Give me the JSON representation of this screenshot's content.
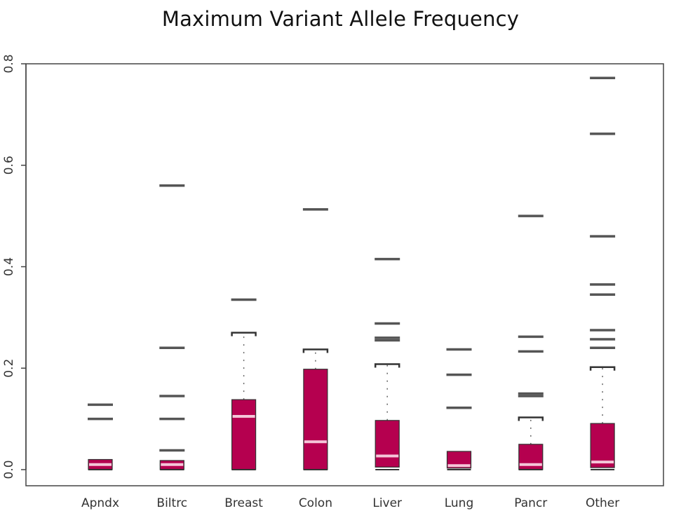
{
  "chart_data": {
    "type": "boxplot",
    "title": "Maximum Variant Allele Frequency",
    "xlabel": "",
    "ylabel": "",
    "ylim": [
      0,
      0.8
    ],
    "yticks": [
      "0.0",
      "0.2",
      "0.4",
      "0.6",
      "0.8"
    ],
    "grid": false,
    "box_color": "#b5004f",
    "median_color": "#f4c6d8",
    "outlier_color": "#555555",
    "categories": [
      "Apndx",
      "Biltrc",
      "Breast",
      "Colon",
      "Liver",
      "Lung",
      "Pancr",
      "Other"
    ],
    "boxes": [
      {
        "category": "Apndx",
        "min": 0.0,
        "q1": 0.0,
        "median": 0.01,
        "q3": 0.02,
        "max": 0.02,
        "outliers": [
          0.1,
          0.128
        ]
      },
      {
        "category": "Biltrc",
        "min": 0.0,
        "q1": 0.0,
        "median": 0.01,
        "q3": 0.018,
        "max": 0.018,
        "outliers": [
          0.038,
          0.1,
          0.145,
          0.24,
          0.56
        ]
      },
      {
        "category": "Breast",
        "min": 0.0,
        "q1": 0.0,
        "median": 0.105,
        "q3": 0.138,
        "max": 0.27,
        "outliers": [
          0.335
        ]
      },
      {
        "category": "Colon",
        "min": 0.0,
        "q1": 0.0,
        "median": 0.055,
        "q3": 0.198,
        "max": 0.237,
        "outliers": [
          0.513
        ]
      },
      {
        "category": "Liver",
        "min": 0.0,
        "q1": 0.005,
        "median": 0.027,
        "q3": 0.097,
        "max": 0.208,
        "outliers": [
          0.255,
          0.26,
          0.288,
          0.415
        ]
      },
      {
        "category": "Lung",
        "min": 0.0,
        "q1": 0.003,
        "median": 0.008,
        "q3": 0.036,
        "max": 0.036,
        "outliers": [
          0.122,
          0.187,
          0.237
        ]
      },
      {
        "category": "Pancr",
        "min": 0.0,
        "q1": 0.0,
        "median": 0.01,
        "q3": 0.05,
        "max": 0.103,
        "outliers": [
          0.145,
          0.15,
          0.233,
          0.262,
          0.5
        ]
      },
      {
        "category": "Other",
        "min": 0.0,
        "q1": 0.004,
        "median": 0.015,
        "q3": 0.091,
        "max": 0.202,
        "outliers": [
          0.24,
          0.257,
          0.275,
          0.345,
          0.365,
          0.46,
          0.662,
          0.772
        ]
      }
    ]
  }
}
